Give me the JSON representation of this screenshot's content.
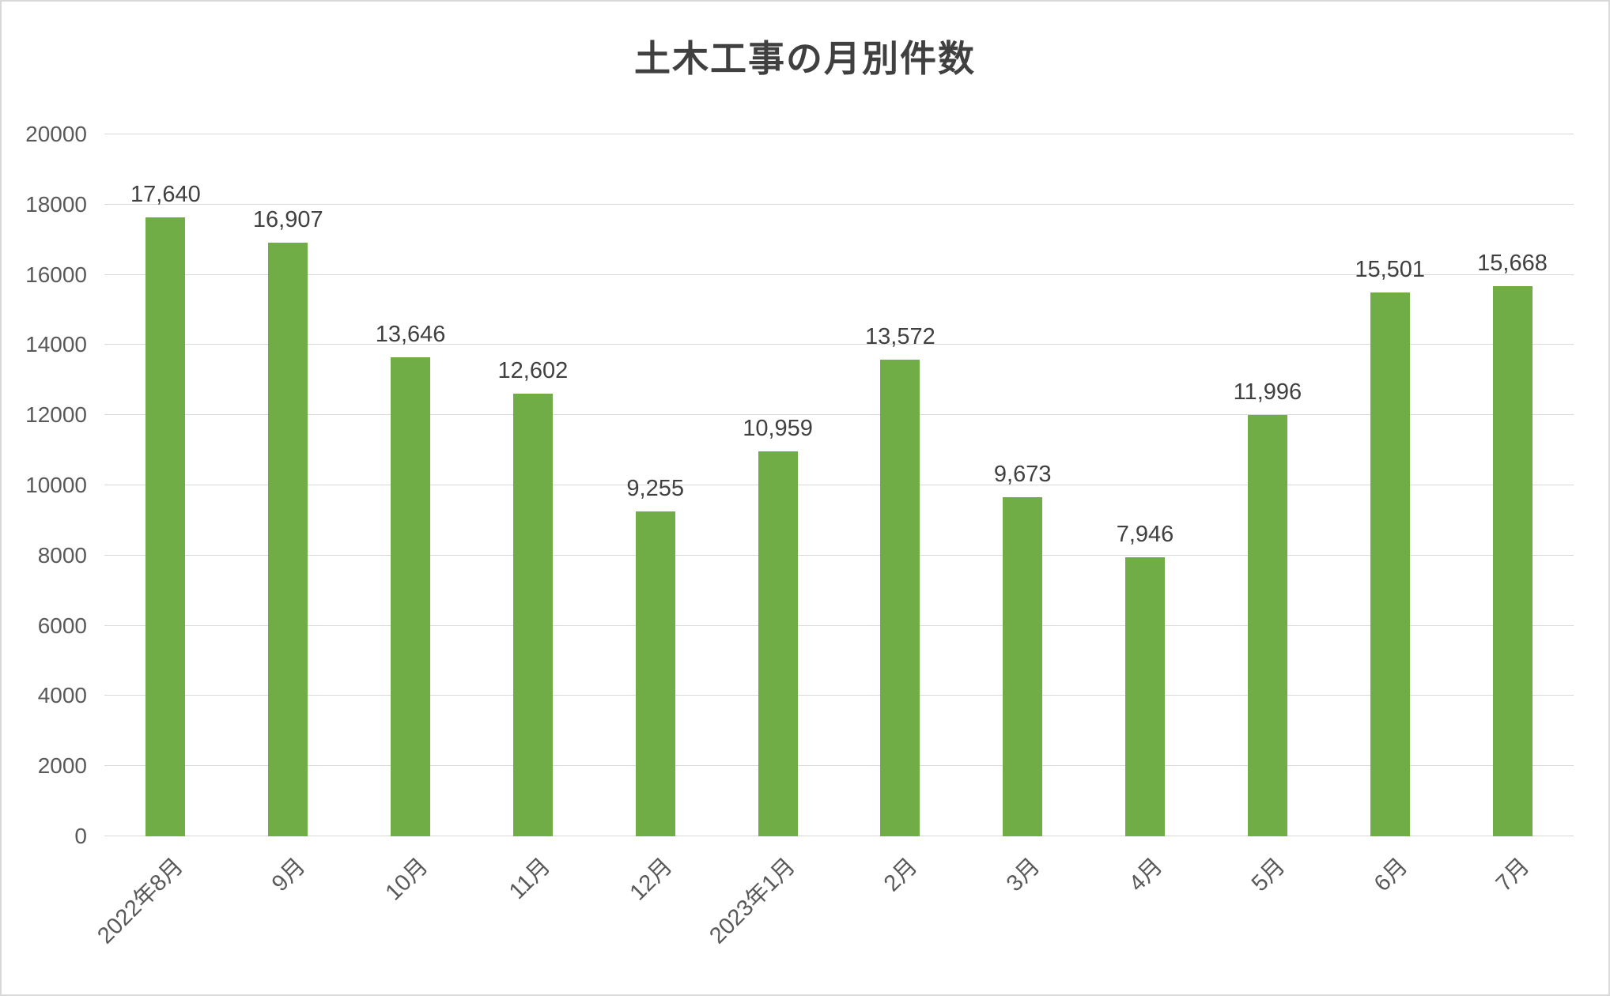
{
  "title": "土木工事の月別件数",
  "colors": {
    "bar": "#70ad47",
    "grid": "#d9d9d9",
    "title_text": "#404040",
    "value_label": "#404040",
    "axis_tick": "#595959"
  },
  "chart_data": {
    "type": "bar",
    "title": "土木工事の月別件数",
    "categories": [
      "2022年8月",
      "9月",
      "10月",
      "11月",
      "12月",
      "2023年1月",
      "2月",
      "3月",
      "4月",
      "5月",
      "6月",
      "7月"
    ],
    "values": [
      17640,
      16907,
      13646,
      12602,
      9255,
      10959,
      13572,
      9673,
      7946,
      11996,
      15501,
      15668
    ],
    "value_labels": [
      "17,640",
      "16,907",
      "13,646",
      "12,602",
      "9,255",
      "10,959",
      "13,572",
      "9,673",
      "7,946",
      "11,996",
      "15,501",
      "15,668"
    ],
    "xlabel": "",
    "ylabel": "",
    "ylim": [
      0,
      20000
    ],
    "ytick_step": 2000,
    "ytick_labels": [
      "0",
      "2000",
      "4000",
      "6000",
      "8000",
      "10000",
      "12000",
      "14000",
      "16000",
      "18000",
      "20000"
    ],
    "grid": true,
    "legend": false
  }
}
